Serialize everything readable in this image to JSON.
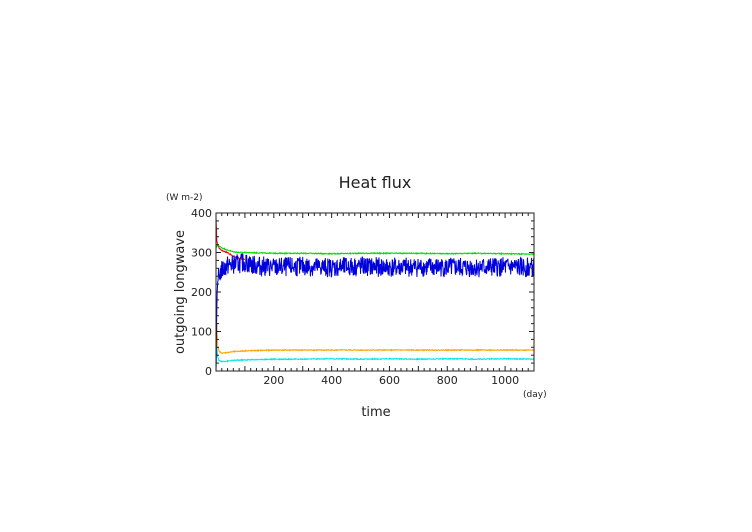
{
  "chart_data": {
    "type": "line",
    "title": "Heat flux",
    "xlabel": "time",
    "ylabel": "outgoing longwave",
    "x_unit": "(day)",
    "y_unit": "(W m-2)",
    "xlim": [
      0,
      1100
    ],
    "ylim": [
      0,
      400
    ],
    "x_ticks": [
      200,
      400,
      600,
      800,
      1000
    ],
    "y_ticks": [
      0,
      100,
      200,
      300,
      400
    ],
    "grid": false,
    "legend": "none",
    "series": [
      {
        "color": "#ff0000",
        "x": [
          0,
          3,
          6,
          10,
          20,
          40,
          60,
          80,
          100
        ],
        "y": [
          390,
          330,
          318,
          312,
          305,
          300,
          290,
          285,
          282
        ]
      },
      {
        "color": "#00dd00",
        "x": [
          0,
          5,
          10,
          20,
          40,
          60,
          80,
          100,
          150,
          200,
          300,
          400,
          500,
          600,
          700,
          800,
          900,
          1000,
          1100
        ],
        "y": [
          310,
          320,
          317,
          312,
          306,
          302,
          300,
          300,
          299,
          298,
          298,
          297,
          298,
          298,
          298,
          297,
          298,
          297,
          296
        ]
      },
      {
        "color": "#ffa500",
        "x": [
          0,
          3,
          6,
          10,
          20,
          40,
          60,
          100,
          150,
          200,
          300,
          400,
          500,
          600,
          700,
          800,
          900,
          1000,
          1100
        ],
        "y": [
          0,
          120,
          65,
          50,
          45,
          47,
          49,
          51,
          52,
          53,
          53,
          53,
          53,
          53,
          53,
          53,
          53,
          53,
          53
        ]
      },
      {
        "color": "#00e5e5",
        "x": [
          0,
          3,
          6,
          10,
          20,
          40,
          60,
          100,
          150,
          200,
          300,
          400,
          500,
          600,
          700,
          800,
          900,
          1000,
          1100
        ],
        "y": [
          0,
          60,
          35,
          27,
          24,
          25,
          27,
          28,
          29,
          30,
          30,
          31,
          30,
          31,
          30,
          31,
          30,
          31,
          30
        ]
      },
      {
        "color": "#0000dd",
        "x": [
          0,
          2,
          4,
          6,
          10,
          15,
          20,
          30,
          40,
          60,
          80,
          100,
          130,
          200,
          300,
          400,
          500,
          600,
          700,
          800,
          900,
          1000,
          1100
        ],
        "y": [
          0,
          120,
          200,
          225,
          240,
          250,
          255,
          262,
          267,
          270,
          272,
          275,
          268,
          262,
          265,
          262,
          265,
          262,
          263,
          262,
          262,
          263,
          262
        ],
        "noise_amplitude": 25
      }
    ]
  }
}
